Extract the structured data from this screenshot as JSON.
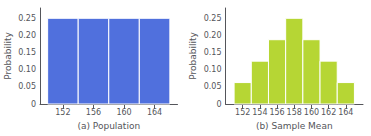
{
  "chart_data": [
    {
      "type": "histogram",
      "bins": [
        150,
        154,
        158,
        162,
        166
      ],
      "values": [
        0.25,
        0.25,
        0.25,
        0.25
      ],
      "xlabel": "(a) Population",
      "ylabel": "Probability",
      "xlim": [
        149,
        167
      ],
      "xticks": [
        152,
        156,
        160,
        164
      ],
      "ylim": [
        0,
        0.28
      ],
      "yticks": [
        0,
        0.05,
        {
          "value": 0.1,
          "label": "0.10"
        },
        0.15,
        {
          "value": 0.2,
          "label": "0.20"
        },
        0.25
      ],
      "grid": false
    },
    {
      "type": "histogram",
      "bins": [
        151,
        153,
        155,
        157,
        159,
        161,
        163,
        165
      ],
      "values": [
        0.0625,
        0.125,
        0.1875,
        0.25,
        0.1875,
        0.125,
        0.0625
      ],
      "xlabel": "(b) Sample Mean",
      "ylabel": "Probability",
      "xlim": [
        150,
        166
      ],
      "xticks": [
        152,
        154,
        156,
        158,
        160,
        162,
        164
      ],
      "ylim": [
        0,
        0.28
      ],
      "yticks": [
        0,
        0.05,
        {
          "value": 0.1,
          "label": "0.10"
        },
        0.15,
        {
          "value": 0.2,
          "label": "0.20"
        },
        0.25
      ],
      "grid": false
    }
  ]
}
